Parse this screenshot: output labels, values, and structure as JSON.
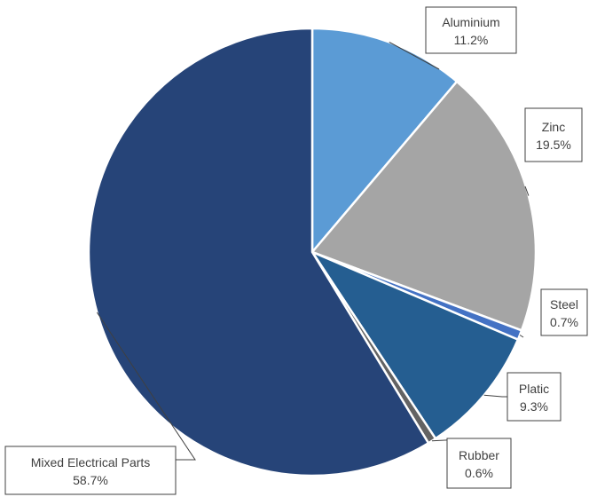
{
  "chart_data": {
    "type": "pie",
    "title": "",
    "categories": [
      "Aluminium",
      "Zinc",
      "Steel",
      "Platic",
      "Rubber",
      "Mixed Electrical Parts"
    ],
    "values": [
      11.2,
      19.5,
      0.7,
      9.3,
      0.6,
      58.7
    ],
    "value_labels": [
      "11.2%",
      "19.5%",
      "0.7%",
      "9.3%",
      "0.6%",
      "58.7%"
    ],
    "colors": [
      "#5b9bd5",
      "#a5a5a5",
      "#4472c4",
      "#255e91",
      "#636363",
      "#264478"
    ],
    "start_angle_deg": 0,
    "direction": "clockwise",
    "legend": "none",
    "data_labels": "callouts with category name and percentage"
  }
}
